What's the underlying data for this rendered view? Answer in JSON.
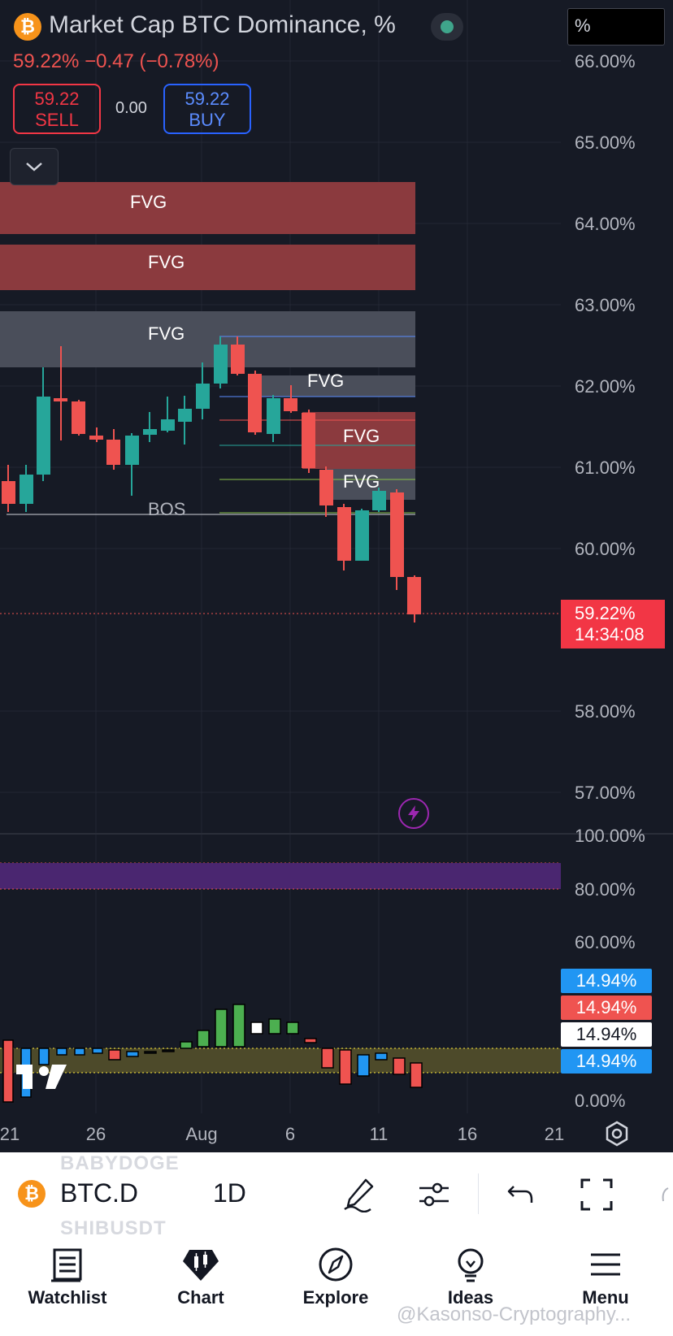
{
  "header": {
    "title": "Market Cap BTC Dominance, %",
    "logo_glyph": "₿",
    "price_change": "59.22%  −0.47 (−0.78%)",
    "unit_selector": "%"
  },
  "trade": {
    "sell_price": "59.22",
    "sell_label": "SELL",
    "spread": "0.00",
    "buy_price": "59.22",
    "buy_label": "BUY"
  },
  "price_axis": [
    "66.00%",
    "65.00%",
    "64.00%",
    "63.00%",
    "62.00%",
    "61.00%",
    "60.00%",
    "58.00%",
    "57.00%"
  ],
  "current_price": {
    "value": "59.22%",
    "countdown": "14:34:08"
  },
  "annotations": {
    "fvg": "FVG",
    "bos": "BOS"
  },
  "indicator": {
    "axis": [
      "100.00%",
      "80.00%",
      "60.00%",
      "0.00%"
    ],
    "labels": [
      "14.94%",
      "14.94%",
      "14.94%",
      "14.94%"
    ]
  },
  "time_axis": [
    "21",
    "26",
    "Aug",
    "6",
    "11",
    "16",
    "21"
  ],
  "toolbar": {
    "symbol": "BTC.D",
    "interval": "1D",
    "ghost_top": "BABYDOGE",
    "ghost_bottom": "SHIBUSDT"
  },
  "nav": [
    {
      "label": "Watchlist",
      "icon": "watchlist-icon"
    },
    {
      "label": "Chart",
      "icon": "chart-icon"
    },
    {
      "label": "Explore",
      "icon": "compass-icon"
    },
    {
      "label": "Ideas",
      "icon": "lightbulb-icon"
    },
    {
      "label": "Menu",
      "icon": "menu-icon"
    }
  ],
  "watermark": "@Kasonso-Cryptography...",
  "colors": {
    "up": "#26a69a",
    "down": "#ef5350",
    "fvg_red": "#8b3a3e",
    "fvg_gray": "#4a4e5a",
    "accent_purple": "#9c27b0"
  }
}
